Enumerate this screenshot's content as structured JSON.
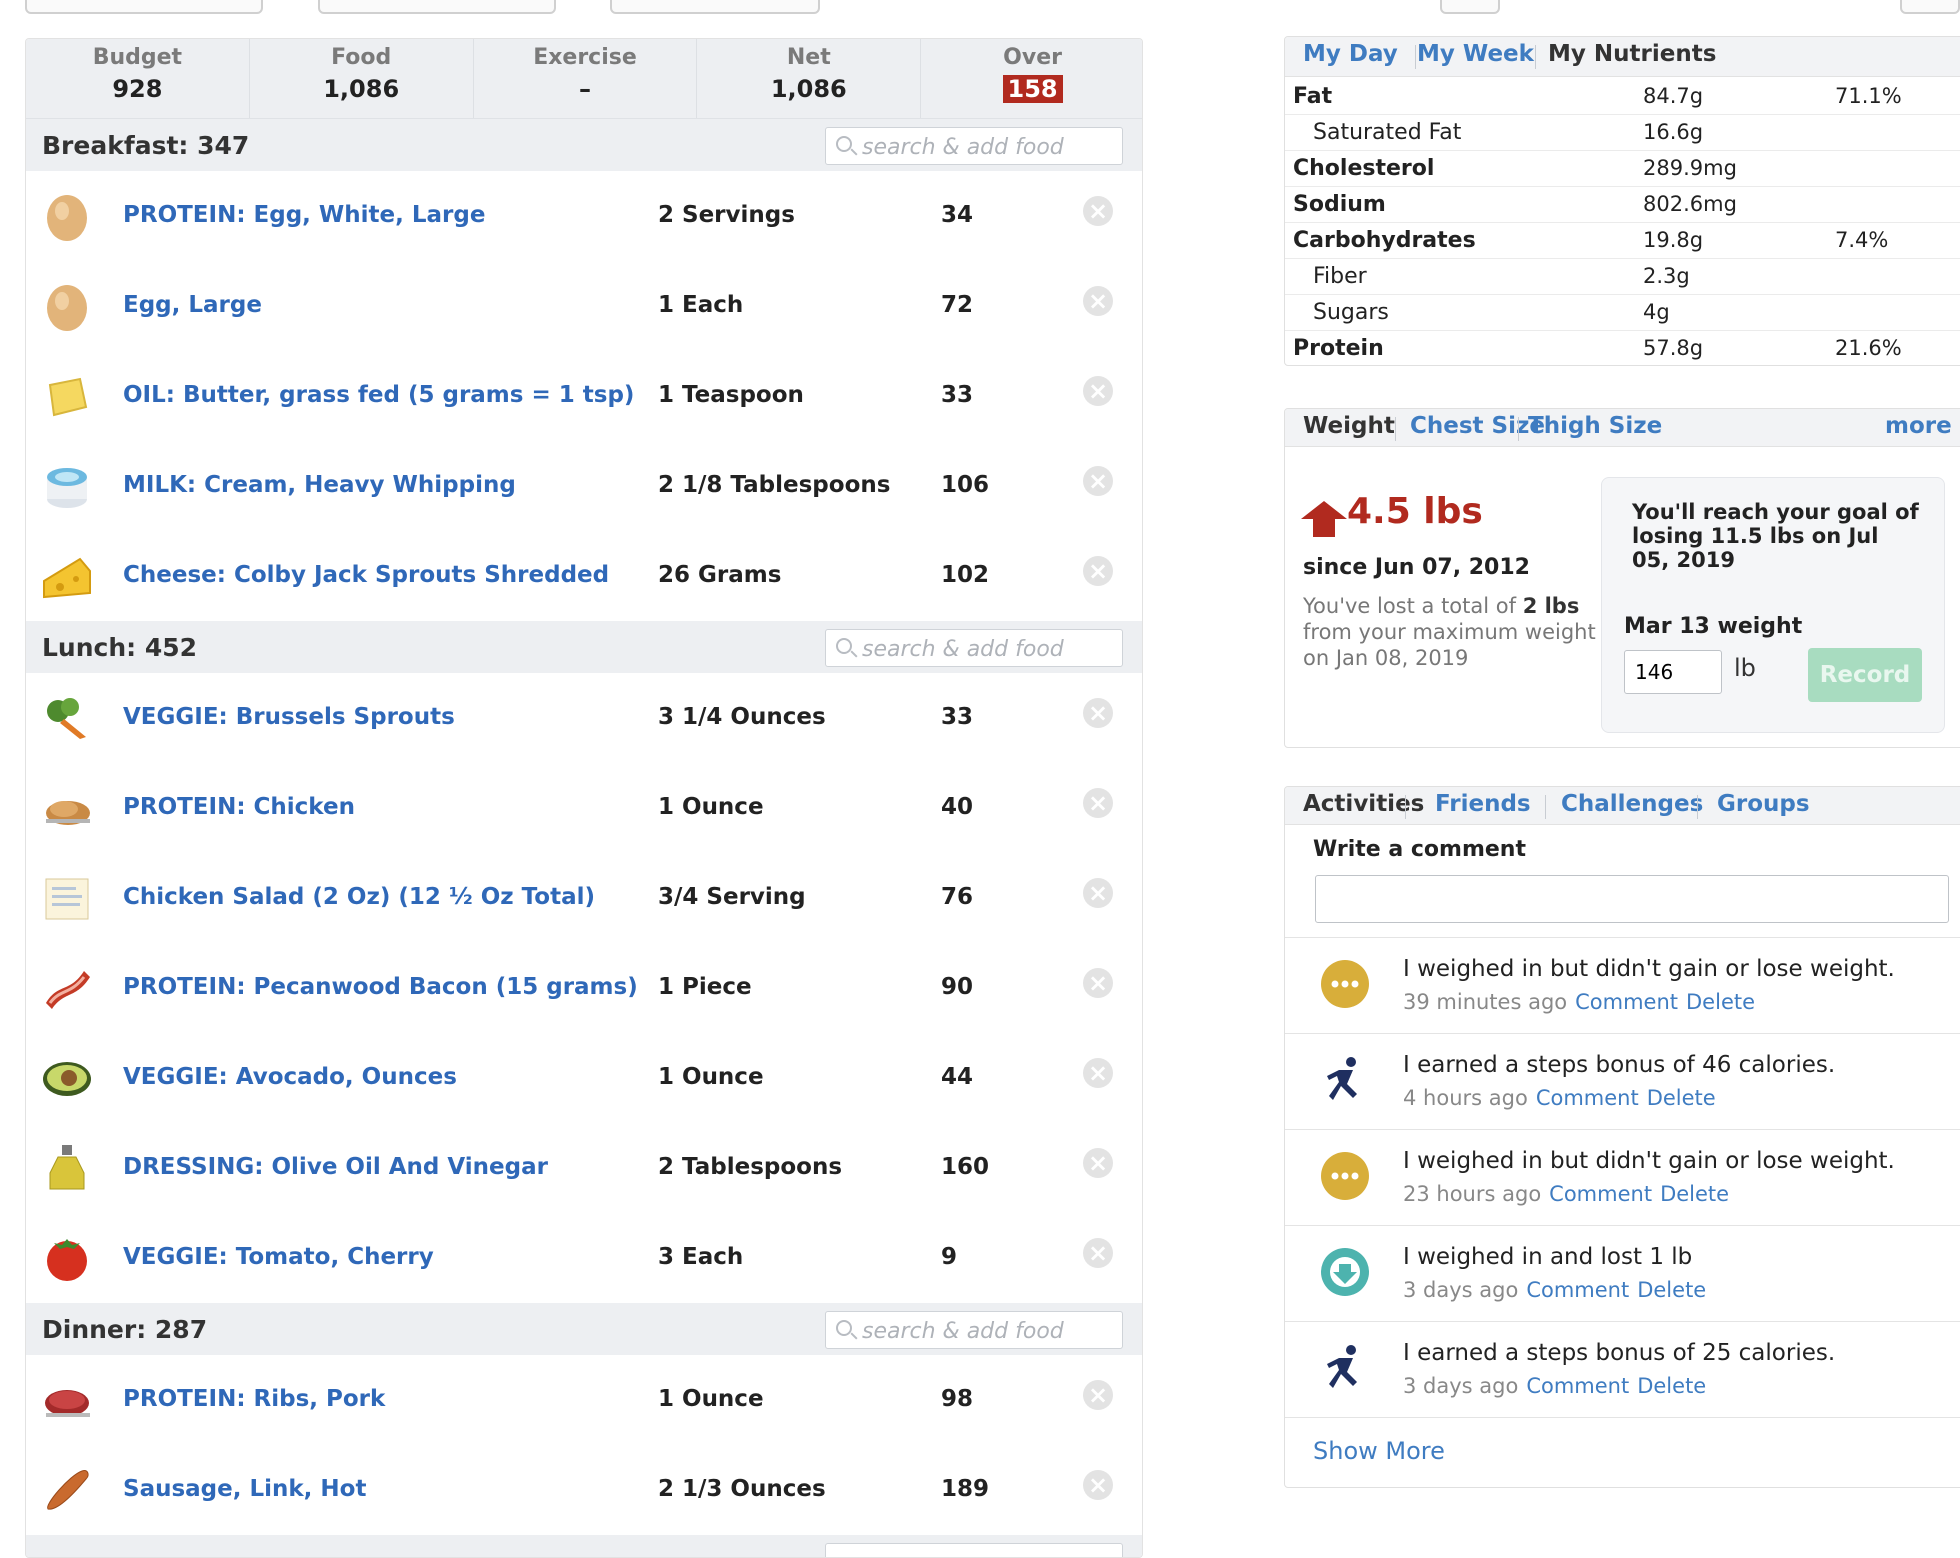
{
  "summary": {
    "budget_label": "Budget",
    "budget_value": "928",
    "food_label": "Food",
    "food_value": "1,086",
    "exercise_label": "Exercise",
    "exercise_value": "–",
    "net_label": "Net",
    "net_value": "1,086",
    "over_label": "Over",
    "over_value": "158"
  },
  "search_placeholder": "search & add food",
  "breakfast": {
    "title": "Breakfast: 347",
    "items": [
      {
        "name": "PROTEIN: Egg, White, Large",
        "qty": "2 Servings",
        "cal": "34",
        "icon": "egg-icon"
      },
      {
        "name": "Egg, Large",
        "qty": "1 Each",
        "cal": "72",
        "icon": "egg-icon"
      },
      {
        "name": "OIL: Butter, grass fed (5 grams = 1 tsp)",
        "qty": "1 Teaspoon",
        "cal": "33",
        "icon": "butter-icon"
      },
      {
        "name": "MILK: Cream, Heavy Whipping",
        "qty": "2 1/8 Tablespoons",
        "cal": "106",
        "icon": "cream-icon"
      },
      {
        "name": "Cheese: Colby Jack Sprouts Shredded",
        "qty": "26 Grams",
        "cal": "102",
        "icon": "cheese-icon"
      }
    ]
  },
  "lunch": {
    "title": "Lunch: 452",
    "items": [
      {
        "name": "VEGGIE: Brussels Sprouts",
        "qty": "3 1/4 Ounces",
        "cal": "33",
        "icon": "veggie-icon"
      },
      {
        "name": "PROTEIN: Chicken",
        "qty": "1 Ounce",
        "cal": "40",
        "icon": "chicken-icon"
      },
      {
        "name": "Chicken Salad (2 Oz) (12 ½ Oz Total)",
        "qty": "3/4 Serving",
        "cal": "76",
        "icon": "recipe-icon"
      },
      {
        "name": "PROTEIN: Pecanwood Bacon (15 grams)",
        "qty": "1 Piece",
        "cal": "90",
        "icon": "bacon-icon"
      },
      {
        "name": "VEGGIE: Avocado, Ounces",
        "qty": "1 Ounce",
        "cal": "44",
        "icon": "avocado-icon"
      },
      {
        "name": "DRESSING: Olive Oil And Vinegar",
        "qty": "2 Tablespoons",
        "cal": "160",
        "icon": "oil-bottle-icon"
      },
      {
        "name": "VEGGIE: Tomato, Cherry",
        "qty": "3 Each",
        "cal": "9",
        "icon": "tomato-icon"
      }
    ]
  },
  "dinner": {
    "title": "Dinner: 287",
    "items": [
      {
        "name": "PROTEIN: Ribs, Pork",
        "qty": "1 Ounce",
        "cal": "98",
        "icon": "meat-icon"
      },
      {
        "name": "Sausage, Link, Hot",
        "qty": "2 1/3 Ounces",
        "cal": "189",
        "icon": "sausage-icon"
      }
    ]
  },
  "nutrients": {
    "tabs": [
      "My Day",
      "My Week",
      "My Nutrients"
    ],
    "rows": [
      {
        "label": "Fat",
        "value": "84.7g",
        "pct": "71.1%",
        "bold": true
      },
      {
        "label": "Saturated Fat",
        "value": "16.6g",
        "pct": "",
        "bold": false
      },
      {
        "label": "Cholesterol",
        "value": "289.9mg",
        "pct": "",
        "bold": true
      },
      {
        "label": "Sodium",
        "value": "802.6mg",
        "pct": "",
        "bold": true
      },
      {
        "label": "Carbohydrates",
        "value": "19.8g",
        "pct": "7.4%",
        "bold": true
      },
      {
        "label": "Fiber",
        "value": "2.3g",
        "pct": "",
        "bold": false
      },
      {
        "label": "Sugars",
        "value": "4g",
        "pct": "",
        "bold": false
      },
      {
        "label": "Protein",
        "value": "57.8g",
        "pct": "21.6%",
        "bold": true
      }
    ]
  },
  "weight": {
    "tabs": [
      "Weight",
      "Chest Size",
      "Thigh Size"
    ],
    "more": "more",
    "change": "4.5 lbs",
    "since": "since Jun 07, 2012",
    "lost_pre": "You've lost a total of ",
    "lost_amount": "2 lbs",
    "lost_post": "from your maximum weight on Jan 08, 2019",
    "goal_text": "You'll reach your goal of losing 11.5 lbs on Jul 05, 2019",
    "record_label": "Mar 13 weight",
    "record_value": "146",
    "unit": "lb",
    "record_button": "Record"
  },
  "activities": {
    "tabs": [
      "Activities",
      "Friends",
      "Challenges",
      "Groups"
    ],
    "write_label": "Write a comment",
    "comment_link": "Comment",
    "delete_link": "Delete",
    "show_more": "Show More",
    "items": [
      {
        "text": "I weighed in but didn't gain or lose weight.",
        "time": "39 minutes ago",
        "icon": "neutral-weigh-icon"
      },
      {
        "text": "I earned a steps bonus of 46 calories.",
        "time": "4 hours ago",
        "icon": "runner-icon"
      },
      {
        "text": "I weighed in but didn't gain or lose weight.",
        "time": "23 hours ago",
        "icon": "neutral-weigh-icon"
      },
      {
        "text": "I weighed in and lost 1 lb",
        "time": "3 days ago",
        "icon": "weight-down-icon"
      },
      {
        "text": "I earned a steps bonus of 25 calories.",
        "time": "3 days ago",
        "icon": "runner-icon"
      }
    ]
  }
}
